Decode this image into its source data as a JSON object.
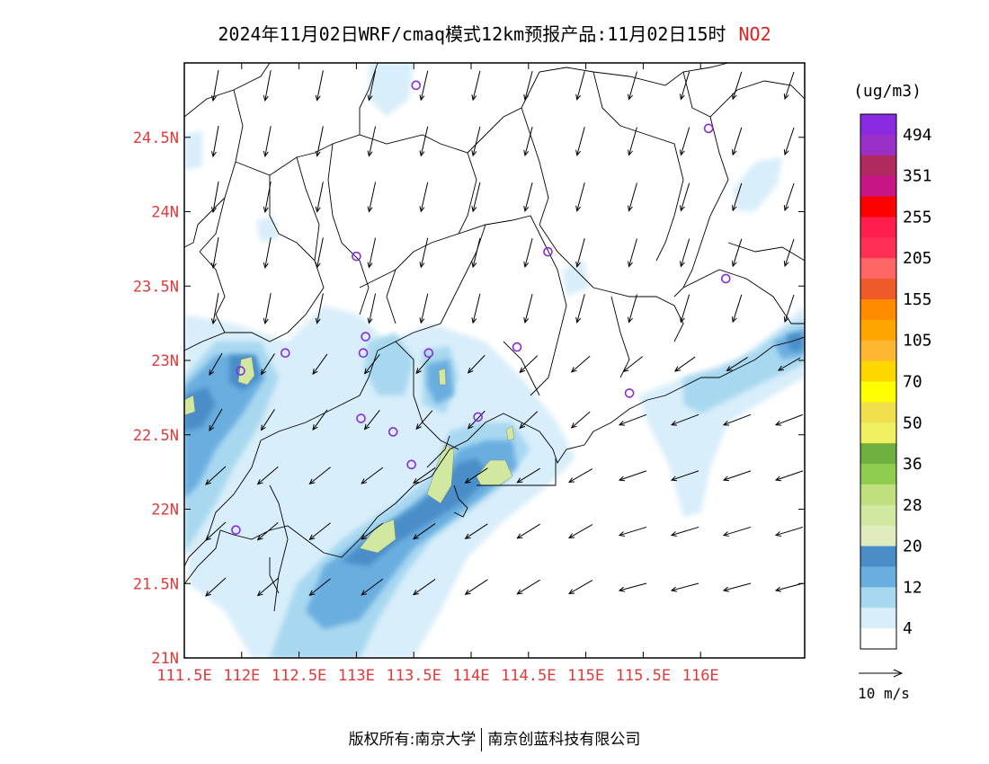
{
  "title": {
    "main": "2024年11月02日WRF/cmaq模式12km预报产品:11月02日15时",
    "pollutant": "NO2"
  },
  "map": {
    "lat_labels": [
      "24.5N",
      "24N",
      "23.5N",
      "23N",
      "22.5N",
      "22N",
      "21.5N",
      "21N"
    ],
    "lon_labels": [
      "111.5E",
      "112E",
      "112.5E",
      "113E",
      "113.5E",
      "114E",
      "114.5E",
      "115E",
      "115.5E",
      "116E"
    ],
    "lat_values": [
      24.5,
      24,
      23.5,
      23,
      22.5,
      22,
      21.5,
      21
    ],
    "lon_values": [
      111.5,
      112,
      112.5,
      113,
      113.5,
      114,
      114.5,
      115,
      115.5,
      116
    ],
    "label_color": "#e03a3a",
    "stations": [
      {
        "lon": 113.52,
        "lat": 24.85
      },
      {
        "lon": 116.07,
        "lat": 24.56
      },
      {
        "lon": 113.0,
        "lat": 23.7
      },
      {
        "lon": 114.67,
        "lat": 23.73
      },
      {
        "lon": 116.22,
        "lat": 23.55
      },
      {
        "lon": 112.38,
        "lat": 23.05
      },
      {
        "lon": 113.08,
        "lat": 23.16
      },
      {
        "lon": 113.06,
        "lat": 23.05
      },
      {
        "lon": 113.63,
        "lat": 23.05
      },
      {
        "lon": 114.4,
        "lat": 23.09
      },
      {
        "lon": 111.99,
        "lat": 22.93
      },
      {
        "lon": 115.38,
        "lat": 22.78
      },
      {
        "lon": 113.04,
        "lat": 22.61
      },
      {
        "lon": 113.32,
        "lat": 22.52
      },
      {
        "lon": 114.06,
        "lat": 22.62
      },
      {
        "lon": 113.48,
        "lat": 22.3
      },
      {
        "lon": 111.95,
        "lat": 21.86
      }
    ],
    "station_color": "#8a2be2"
  },
  "legend": {
    "unit": "(ug/m3)",
    "labels": [
      "494",
      "351",
      "255",
      "205",
      "155",
      "105",
      "70",
      "50",
      "36",
      "28",
      "20",
      "12",
      "4"
    ],
    "colors_top_to_bottom": [
      "#8a2be2",
      "#9b30c8",
      "#b02a60",
      "#c71585",
      "#ff0000",
      "#ff1e4e",
      "#ff2f55",
      "#ff6666",
      "#f05a28",
      "#ff8c00",
      "#ffa500",
      "#ffb732",
      "#ffd700",
      "#ffff00",
      "#f0e050",
      "#f0f060",
      "#70b040",
      "#90cc50",
      "#c0e080",
      "#d0e8a0",
      "#e0ecc0",
      "#4a8ec8",
      "#6aaee0",
      "#a8d8f0",
      "#d8eefa",
      "#ffffff"
    ],
    "wind_scale_label": "10 m/s"
  },
  "footer": {
    "left": "版权所有:南京大学",
    "right": "南京创蓝科技有限公司"
  }
}
